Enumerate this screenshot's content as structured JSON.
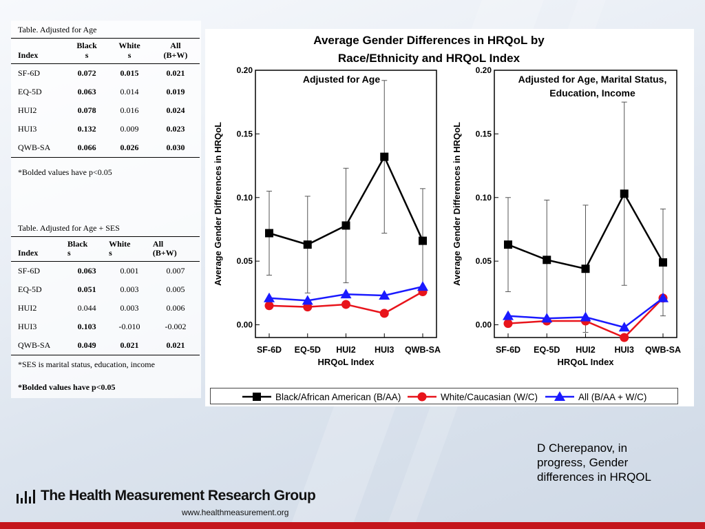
{
  "table1": {
    "caption": "Table. Adjusted for Age",
    "headers": [
      "Index",
      "Black\ns",
      "White\ns",
      "All\n(B+W)"
    ],
    "rows": [
      {
        "index": "SF-6D",
        "black": "0.072",
        "white": "0.015",
        "all": "0.021",
        "bold": [
          true,
          true,
          true
        ]
      },
      {
        "index": "EQ-5D",
        "black": "0.063",
        "white": "0.014",
        "all": "0.019",
        "bold": [
          true,
          false,
          true
        ]
      },
      {
        "index": "HUI2",
        "black": "0.078",
        "white": "0.016",
        "all": "0.024",
        "bold": [
          true,
          false,
          true
        ]
      },
      {
        "index": "HUI3",
        "black": "0.132",
        "white": "0.009",
        "all": "0.023",
        "bold": [
          true,
          false,
          true
        ]
      },
      {
        "index": "QWB-SA",
        "black": "0.066",
        "white": "0.026",
        "all": "0.030",
        "bold": [
          true,
          true,
          true
        ]
      }
    ],
    "note": "*Bolded values have p<0.05"
  },
  "table2": {
    "caption": "Table. Adjusted for Age + SES",
    "headers": [
      "Index",
      "Black\ns",
      "White\ns",
      "All\n(B+W)"
    ],
    "rows": [
      {
        "index": "SF-6D",
        "black": "0.063",
        "white": "0.001",
        "all": "0.007",
        "bold": [
          true,
          false,
          false
        ]
      },
      {
        "index": "EQ-5D",
        "black": "0.051",
        "white": "0.003",
        "all": "0.005",
        "bold": [
          true,
          false,
          false
        ]
      },
      {
        "index": "HUI2",
        "black": "0.044",
        "white": "0.003",
        "all": "0.006",
        "bold": [
          false,
          false,
          false
        ]
      },
      {
        "index": "HUI3",
        "black": "0.103",
        "white": "-0.010",
        "all": "-0.002",
        "bold": [
          true,
          false,
          false
        ]
      },
      {
        "index": "QWB-SA",
        "black": "0.049",
        "white": "0.021",
        "all": "0.021",
        "bold": [
          true,
          true,
          true
        ]
      }
    ],
    "note1": "*SES is marital status, education, income",
    "note2": "*Bolded values have p<0.05"
  },
  "figure_title_line1": "Average Gender Differences in HRQoL by",
  "figure_title_line2": "Race/Ethnicity and HRQoL Index",
  "chart_data": [
    {
      "type": "line",
      "title": "Adjusted for Age",
      "xlabel": "HRQoL Index",
      "ylabel": "Average Gender Differences in HRQoL",
      "categories": [
        "SF-6D",
        "EQ-5D",
        "HUI2",
        "HUI3",
        "QWB-SA"
      ],
      "ylim": [
        -0.01,
        0.2
      ],
      "yticks": [
        "0.00",
        "0.05",
        "0.10",
        "0.15",
        "0.20"
      ],
      "series": [
        {
          "name": "Black/African American (B/AA)",
          "values": [
            0.072,
            0.063,
            0.078,
            0.132,
            0.066
          ],
          "err_low": [
            0.039,
            0.025,
            0.033,
            0.072,
            0.025
          ],
          "err_high": [
            0.105,
            0.101,
            0.123,
            0.192,
            0.107
          ],
          "color": "#000000",
          "marker": "square"
        },
        {
          "name": "White/Caucasian (W/C)",
          "values": [
            0.015,
            0.014,
            0.016,
            0.009,
            0.026
          ],
          "color": "#e8141b",
          "marker": "circle"
        },
        {
          "name": "All (B/AA + W/C)",
          "values": [
            0.021,
            0.019,
            0.024,
            0.023,
            0.03
          ],
          "color": "#1a1aff",
          "marker": "triangle"
        }
      ]
    },
    {
      "type": "line",
      "title": "Adjusted for Age, Marital Status, Education, Income",
      "title_lines": [
        "Adjusted for Age, Marital Status,",
        "Education, Income"
      ],
      "xlabel": "HRQoL Index",
      "ylabel": "Average Gender Differences in HRQoL",
      "categories": [
        "SF-6D",
        "EQ-5D",
        "HUI2",
        "HUI3",
        "QWB-SA"
      ],
      "ylim": [
        -0.01,
        0.2
      ],
      "yticks": [
        "0.00",
        "0.05",
        "0.10",
        "0.15",
        "0.20"
      ],
      "series": [
        {
          "name": "Black/African American (B/AA)",
          "values": [
            0.063,
            0.051,
            0.044,
            0.103,
            0.049
          ],
          "err_low": [
            0.026,
            0.004,
            -0.006,
            0.031,
            0.007
          ],
          "err_high": [
            0.1,
            0.098,
            0.094,
            0.175,
            0.091
          ],
          "color": "#000000",
          "marker": "square"
        },
        {
          "name": "White/Caucasian (W/C)",
          "values": [
            0.001,
            0.003,
            0.003,
            -0.01,
            0.021
          ],
          "color": "#e8141b",
          "marker": "circle"
        },
        {
          "name": "All (B/AA + W/C)",
          "values": [
            0.007,
            0.005,
            0.006,
            -0.002,
            0.021
          ],
          "color": "#1a1aff",
          "marker": "triangle"
        }
      ]
    }
  ],
  "legend": [
    "Black/African American (B/AA)",
    "White/Caucasian (W/C)",
    "All (B/AA + W/C)"
  ],
  "footer": {
    "logo_text": "The Health Measurement Research Group",
    "url": "www.healthmeasurement.org",
    "author_note": "D Cherepanov, in progress, Gender differences in HRQOL"
  }
}
